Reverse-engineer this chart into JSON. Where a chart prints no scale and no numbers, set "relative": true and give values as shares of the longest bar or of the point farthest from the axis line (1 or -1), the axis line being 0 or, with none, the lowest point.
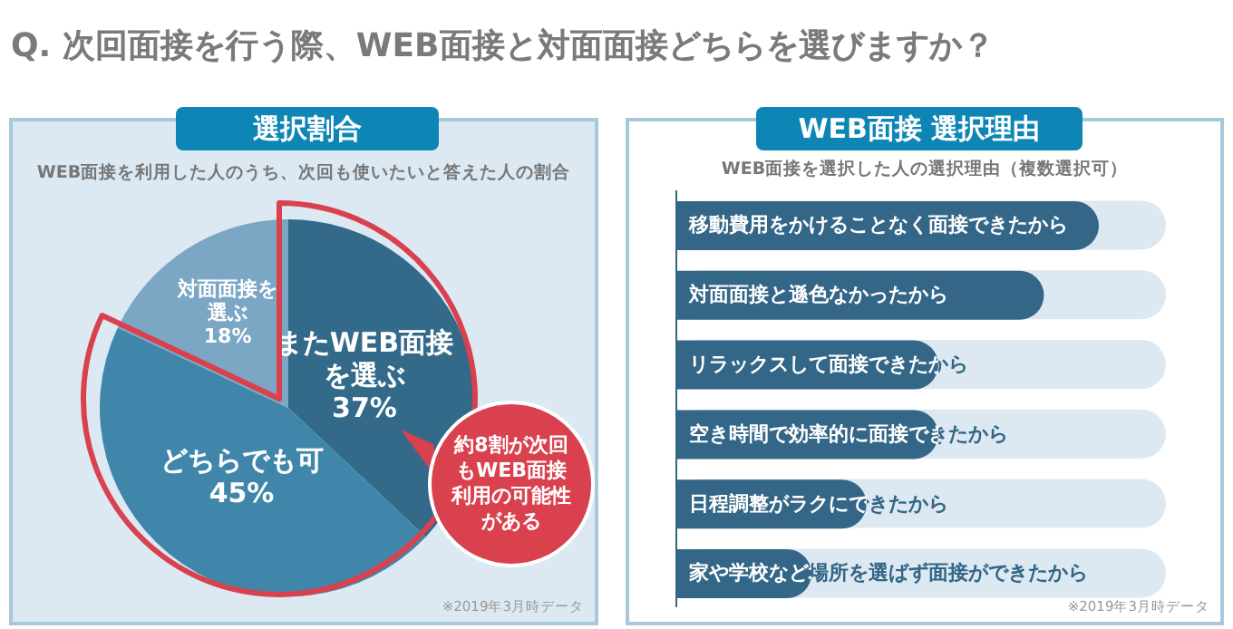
{
  "chart_data": [
    {
      "type": "other",
      "title": "Q. 次回面接を行う際、WEB面接と対面面接どちらを選びますか？"
    },
    {
      "type": "pie",
      "title": "選択割合",
      "subtitle": "WEB面接を利用した人のうち、次回も使いたいと答えた人の割合",
      "categories": [
        "またWEB面接を選ぶ",
        "どちらでも可",
        "対面面接を選ぶ"
      ],
      "values": [
        37,
        45,
        18
      ],
      "value_labels": [
        "37%",
        "45%",
        "18%"
      ],
      "colors": [
        "#336a8a",
        "#3f86aa",
        "#7ba6c4"
      ],
      "annotations": [
        "約8割が次回もWEB面接利用の可能性がある",
        "※2019年3月時データ"
      ]
    },
    {
      "type": "bar",
      "orientation": "horizontal",
      "relative": true,
      "title": "WEB面接 選択理由",
      "subtitle": "WEB面接を選択した人の選択理由（複数選択可）",
      "categories": [
        "移動費用をかけることなく面接できたから",
        "対面面接と遜色なかったから",
        "リラックスして面接できたから",
        "空き時間で効率的に面接できたから",
        "日程調整がラクにできたから",
        "家や学校など場所を選ばず面接ができたから"
      ],
      "values": [
        1,
        0.87,
        0.62,
        0.62,
        0.45,
        0.32
      ],
      "color": "#336687",
      "annotations": [
        "※2019年3月時データ"
      ]
    }
  ]
}
